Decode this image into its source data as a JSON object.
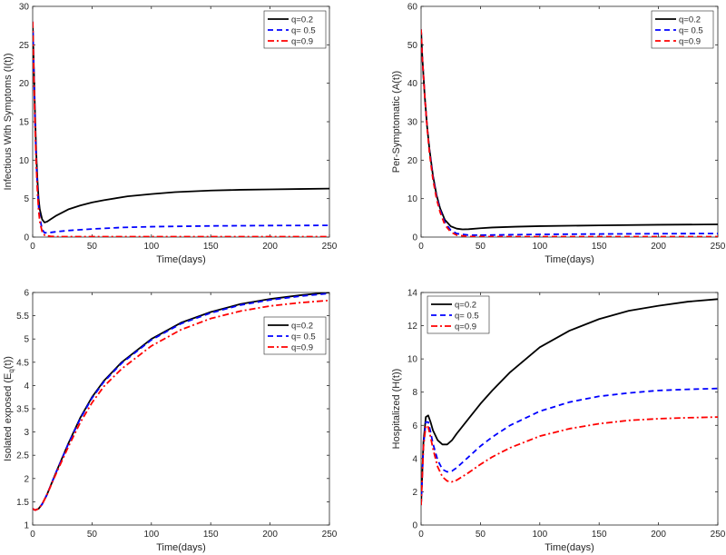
{
  "figure": {
    "background": "#ffffff"
  },
  "chart_data": [
    {
      "type": "line",
      "id": "infectious",
      "title": "",
      "xlabel": "Time(days)",
      "ylabel": "Infectious With Symptoms (I(t))",
      "xlim": [
        0,
        250
      ],
      "ylim": [
        0,
        30
      ],
      "xticks": [
        0,
        50,
        100,
        150,
        200,
        250
      ],
      "yticks": [
        0,
        5,
        10,
        15,
        20,
        25,
        30
      ],
      "legend_position": "top-right",
      "series": [
        {
          "name": "q=0.2",
          "color": "#000000",
          "dash": "solid",
          "x": [
            0,
            1,
            2,
            3,
            4,
            5,
            6,
            8,
            10,
            12,
            15,
            20,
            30,
            40,
            50,
            60,
            80,
            100,
            120,
            150,
            175,
            200,
            225,
            250
          ],
          "y": [
            28,
            22,
            16,
            11,
            7.5,
            5,
            3.6,
            2.3,
            1.9,
            2.0,
            2.3,
            2.8,
            3.6,
            4.1,
            4.5,
            4.8,
            5.3,
            5.6,
            5.85,
            6.05,
            6.15,
            6.2,
            6.25,
            6.3
          ]
        },
        {
          "name": "q= 0.5",
          "color": "#0000ff",
          "dash": "dashed",
          "x": [
            0,
            1,
            2,
            3,
            4,
            5,
            6,
            8,
            10,
            15,
            20,
            30,
            50,
            75,
            100,
            150,
            200,
            250
          ],
          "y": [
            28,
            21.5,
            15,
            10,
            6.5,
            4,
            2.5,
            1,
            0.55,
            0.6,
            0.7,
            0.85,
            1.05,
            1.25,
            1.35,
            1.45,
            1.5,
            1.52
          ]
        },
        {
          "name": "q=0.9",
          "color": "#ff0000",
          "dash": "dashdot",
          "x": [
            0,
            1,
            2,
            3,
            4,
            5,
            6,
            8,
            10,
            15,
            20,
            50,
            100,
            150,
            200,
            250
          ],
          "y": [
            28,
            21,
            14.5,
            9.5,
            6,
            3.5,
            2,
            0.7,
            0.25,
            0.1,
            0.05,
            0.05,
            0.05,
            0.05,
            0.05,
            0.05
          ]
        }
      ]
    },
    {
      "type": "line",
      "id": "presymptomatic",
      "title": "",
      "xlabel": "Time(days)",
      "ylabel": "Per-Symptomatic (A(t))",
      "xlim": [
        0,
        250
      ],
      "ylim": [
        0,
        60
      ],
      "xticks": [
        0,
        50,
        100,
        150,
        200,
        250
      ],
      "yticks": [
        0,
        10,
        20,
        30,
        40,
        50,
        60
      ],
      "legend_position": "top-right",
      "series": [
        {
          "name": "q=0.2",
          "color": "#000000",
          "dash": "solid",
          "x": [
            0,
            1,
            2,
            3,
            5,
            7,
            10,
            13,
            16,
            20,
            25,
            30,
            35,
            40,
            50,
            60,
            80,
            100,
            150,
            200,
            250
          ],
          "y": [
            54,
            47,
            42,
            37,
            29,
            23,
            16,
            11,
            7.5,
            4.5,
            2.8,
            2.2,
            2,
            2.05,
            2.3,
            2.5,
            2.7,
            2.85,
            3.05,
            3.2,
            3.3
          ]
        },
        {
          "name": "q= 0.5",
          "color": "#0000ff",
          "dash": "dashed",
          "x": [
            0,
            1,
            2,
            3,
            5,
            7,
            10,
            13,
            16,
            20,
            25,
            30,
            40,
            50,
            75,
            100,
            150,
            200,
            250
          ],
          "y": [
            54,
            47,
            42,
            37,
            29,
            22.5,
            15.5,
            10.5,
            7,
            3.8,
            1.8,
            0.9,
            0.5,
            0.5,
            0.6,
            0.7,
            0.8,
            0.88,
            0.92
          ]
        },
        {
          "name": "q=0.9",
          "color": "#ff0000",
          "dash": "dashed",
          "x": [
            0,
            1,
            2,
            3,
            5,
            7,
            10,
            13,
            16,
            20,
            25,
            30,
            40,
            50,
            100,
            150,
            200,
            250
          ],
          "y": [
            54,
            47,
            42,
            37,
            29,
            22,
            15,
            10,
            6.5,
            3.2,
            1.3,
            0.5,
            0.15,
            0.1,
            0.1,
            0.1,
            0.1,
            0.1
          ]
        }
      ]
    },
    {
      "type": "line",
      "id": "isolated-exposed",
      "title": "",
      "xlabel": "Time(days)",
      "ylabel": "Isolated exposed (E",
      "ylabel_sub": "q",
      "ylabel_suffix": "(t))",
      "xlim": [
        0,
        250
      ],
      "ylim": [
        1,
        6
      ],
      "xticks": [
        0,
        50,
        100,
        150,
        200,
        250
      ],
      "yticks": [
        1,
        1.5,
        2,
        2.5,
        3,
        3.5,
        4,
        4.5,
        5,
        5.5,
        6
      ],
      "legend_position": "right",
      "series": [
        {
          "name": "q=0.2",
          "color": "#000000",
          "dash": "solid",
          "x": [
            0,
            2,
            5,
            8,
            12,
            20,
            30,
            40,
            50,
            60,
            75,
            100,
            125,
            150,
            175,
            200,
            225,
            250
          ],
          "y": [
            1.35,
            1.32,
            1.35,
            1.45,
            1.65,
            2.15,
            2.75,
            3.3,
            3.75,
            4.1,
            4.5,
            5.0,
            5.35,
            5.58,
            5.75,
            5.86,
            5.94,
            6.0
          ]
        },
        {
          "name": "q= 0.5",
          "color": "#0000ff",
          "dash": "dashed",
          "x": [
            0,
            2,
            5,
            8,
            12,
            20,
            30,
            40,
            50,
            60,
            75,
            100,
            125,
            150,
            175,
            200,
            225,
            250
          ],
          "y": [
            1.35,
            1.32,
            1.35,
            1.45,
            1.65,
            2.15,
            2.74,
            3.28,
            3.73,
            4.08,
            4.48,
            4.98,
            5.33,
            5.56,
            5.73,
            5.84,
            5.92,
            5.98
          ]
        },
        {
          "name": "q=0.9",
          "color": "#ff0000",
          "dash": "dashdot",
          "x": [
            0,
            2,
            5,
            8,
            12,
            20,
            30,
            40,
            50,
            60,
            75,
            100,
            125,
            150,
            175,
            200,
            225,
            250
          ],
          "y": [
            1.35,
            1.32,
            1.35,
            1.45,
            1.65,
            2.12,
            2.68,
            3.2,
            3.63,
            3.98,
            4.36,
            4.85,
            5.2,
            5.44,
            5.6,
            5.71,
            5.78,
            5.83
          ]
        }
      ]
    },
    {
      "type": "line",
      "id": "hospitalized",
      "title": "",
      "xlabel": "Time(days)",
      "ylabel": "Hospitalized (H(t))",
      "xlim": [
        0,
        250
      ],
      "ylim": [
        0,
        14
      ],
      "xticks": [
        0,
        50,
        100,
        150,
        200,
        250
      ],
      "yticks": [
        0,
        2,
        4,
        6,
        8,
        10,
        12,
        14
      ],
      "legend_position": "top-left",
      "series": [
        {
          "name": "q=0.2",
          "color": "#000000",
          "dash": "solid",
          "x": [
            0,
            2,
            4,
            6,
            8,
            10,
            14,
            18,
            22,
            26,
            30,
            40,
            50,
            60,
            75,
            100,
            125,
            150,
            175,
            200,
            225,
            250
          ],
          "y": [
            1.2,
            5,
            6.5,
            6.6,
            6.2,
            5.7,
            5.1,
            4.85,
            4.85,
            5.1,
            5.5,
            6.4,
            7.3,
            8.1,
            9.2,
            10.7,
            11.7,
            12.4,
            12.9,
            13.2,
            13.45,
            13.6
          ]
        },
        {
          "name": "q= 0.5",
          "color": "#0000ff",
          "dash": "dashed",
          "x": [
            0,
            2,
            4,
            6,
            8,
            10,
            14,
            18,
            22,
            26,
            30,
            40,
            50,
            60,
            75,
            100,
            125,
            150,
            175,
            200,
            225,
            250
          ],
          "y": [
            1.2,
            4.8,
            6.2,
            6.2,
            5.6,
            4.9,
            3.9,
            3.35,
            3.2,
            3.25,
            3.45,
            4.1,
            4.75,
            5.3,
            6.0,
            6.85,
            7.4,
            7.75,
            7.95,
            8.1,
            8.17,
            8.22
          ]
        },
        {
          "name": "q=0.9",
          "color": "#ff0000",
          "dash": "dashdot",
          "x": [
            0,
            2,
            4,
            6,
            8,
            10,
            14,
            18,
            22,
            26,
            30,
            40,
            50,
            60,
            75,
            100,
            125,
            150,
            175,
            200,
            225,
            250
          ],
          "y": [
            1.2,
            4.7,
            6.0,
            5.9,
            5.3,
            4.6,
            3.5,
            2.9,
            2.65,
            2.6,
            2.7,
            3.15,
            3.65,
            4.1,
            4.65,
            5.35,
            5.8,
            6.1,
            6.3,
            6.4,
            6.46,
            6.5
          ]
        }
      ]
    }
  ]
}
